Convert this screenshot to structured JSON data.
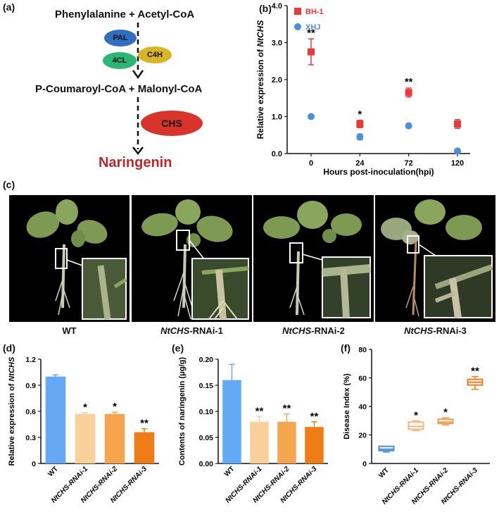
{
  "panels": {
    "a": "(a)",
    "b": "(b)",
    "c": "(c)",
    "d": "(d)",
    "e": "(e)",
    "f": "(f)"
  },
  "pathway": {
    "substrates_top": "Phenylalanine + Acetyl-CoA",
    "substrates_mid": "P-Coumaroyl-CoA + Malonyl-CoA",
    "product": "Naringenin",
    "enzymes": {
      "pal": "PAL",
      "fourcl": "4CL",
      "c4h": "C4H",
      "chs": "CHS"
    },
    "colors": {
      "pal": "#2f6fc0",
      "fourcl": "#2bb673",
      "c4h": "#d9b526",
      "chs": "#d9342b",
      "product": "#c0262c"
    }
  },
  "photos": {
    "wt": {
      "italic": "",
      "plain": "WT"
    },
    "rnai1": {
      "italic": "NtCHS",
      "plain": "-RNAi-1"
    },
    "rnai2": {
      "italic": "NtCHS",
      "plain": "-RNAi-2"
    },
    "rnai3": {
      "italic": "NtCHS",
      "plain": "-RNAi-3"
    }
  },
  "chart_data": [
    {
      "panel": "b",
      "type": "scatter",
      "xlabel": "Hours post-inoculation(hpi)",
      "ylabel_prefix": "Relative expression of ",
      "ylabel_gene": "NtCHS",
      "categories": [
        "0",
        "24",
        "72",
        "120"
      ],
      "yticks": [
        "0.0",
        "1.0",
        "2.0",
        "3.0",
        "4.0"
      ],
      "ylim": [
        0,
        4
      ],
      "legend_position": "top-left",
      "series": [
        {
          "name": "BH-1",
          "color": "#e8393b",
          "marker": "square",
          "values": [
            2.75,
            0.8,
            1.65,
            0.8
          ],
          "errors": [
            0.35,
            0.1,
            0.12,
            0.12
          ]
        },
        {
          "name": "XHJ",
          "color": "#4a90d9",
          "marker": "circle",
          "values": [
            1.0,
            0.45,
            0.75,
            0.07
          ],
          "errors": [
            0.03,
            0.08,
            0.04,
            0.02
          ]
        }
      ],
      "significance": [
        "**",
        "*",
        "**",
        ""
      ]
    },
    {
      "panel": "d",
      "type": "bar",
      "ylabel_prefix": "Relative expression of ",
      "ylabel_gene": "NtCHS",
      "categories": [
        "WT",
        "NtCHS-RNAi-1",
        "NtCHS-RNAi-2",
        "NtCHS-RNAi-3"
      ],
      "values": [
        1.0,
        0.57,
        0.57,
        0.36
      ],
      "errors": [
        0.02,
        0.015,
        0.02,
        0.04
      ],
      "yticks": [
        "0",
        "0.3",
        "0.6",
        "0.9",
        "1.2"
      ],
      "ylim": [
        0,
        1.2
      ],
      "significance": [
        "",
        "*",
        "*",
        "**"
      ],
      "colors": [
        "#63a9f5",
        "#f9cf9a",
        "#f7a44e",
        "#f07c18"
      ]
    },
    {
      "panel": "e",
      "type": "bar",
      "ylabel": "Contents of naringenin (μg/g)",
      "categories": [
        "WT",
        "NtCHS-RNAi-1",
        "NtCHS-RNAi-2",
        "NtCHS-RNAi-3"
      ],
      "values": [
        0.16,
        0.08,
        0.08,
        0.07
      ],
      "errors": [
        0.03,
        0.01,
        0.015,
        0.01
      ],
      "yticks": [
        "0.00",
        "0.05",
        "0.10",
        "0.15",
        "0.20"
      ],
      "ylim": [
        0,
        0.2
      ],
      "significance": [
        "",
        "**",
        "**",
        "**"
      ],
      "colors": [
        "#63a9f5",
        "#f9cf9a",
        "#f7a44e",
        "#f07c18"
      ]
    },
    {
      "panel": "f",
      "type": "box",
      "ylabel": "Disease Index (%)",
      "categories": [
        "WT",
        "NtCHS-RNAi-1",
        "NtCHS-RNAi-2",
        "NtCHS-RNAi-3"
      ],
      "boxes": [
        {
          "min": 8,
          "q1": 9,
          "median": 10,
          "q3": 12,
          "max": 12
        },
        {
          "min": 23,
          "q1": 24,
          "median": 26,
          "q3": 29,
          "max": 30
        },
        {
          "min": 27,
          "q1": 28,
          "median": 29,
          "q3": 31,
          "max": 32
        },
        {
          "min": 52,
          "q1": 55,
          "median": 57,
          "q3": 59,
          "max": 61
        }
      ],
      "yticks": [
        "0",
        "20",
        "40",
        "60",
        "80"
      ],
      "ylim": [
        0,
        80
      ],
      "significance": [
        "",
        "*",
        "*",
        "**"
      ],
      "colors": [
        "#4a90d9",
        "#f4b77a",
        "#f29d45",
        "#f07c18"
      ]
    }
  ]
}
